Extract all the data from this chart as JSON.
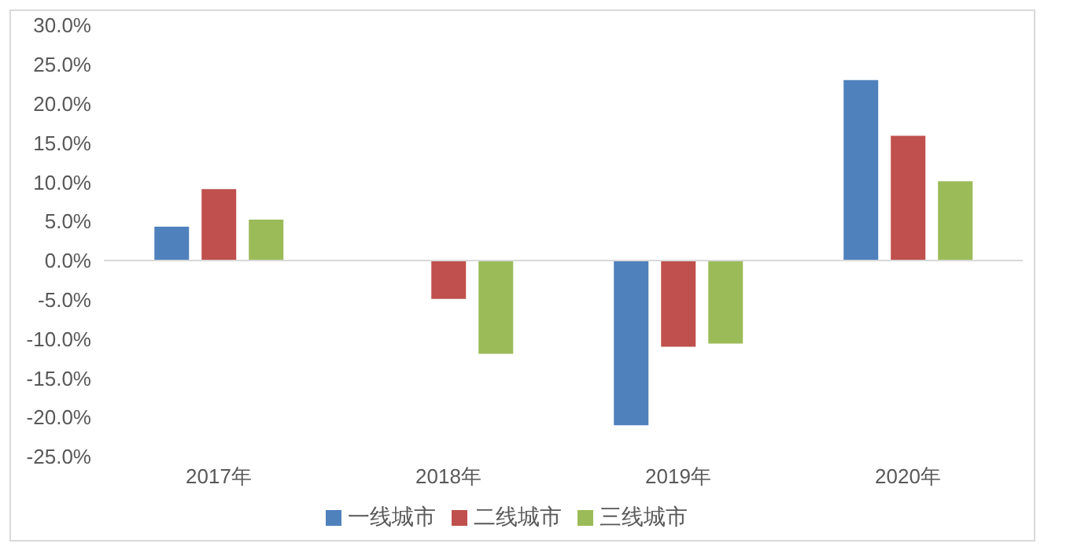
{
  "chart_data": {
    "type": "bar",
    "categories": [
      "2017年",
      "2018年",
      "2019年",
      "2020年"
    ],
    "series": [
      {
        "name": "一线城市",
        "color": "#4f81bd",
        "values": [
          4.3,
          0,
          -21.0,
          23.0
        ]
      },
      {
        "name": "二线城市",
        "color": "#c0504d",
        "values": [
          9.1,
          -4.9,
          -11.0,
          15.9
        ]
      },
      {
        "name": "三线城市",
        "color": "#9bbb59",
        "values": [
          5.2,
          -11.9,
          -10.6,
          10.1
        ]
      }
    ],
    "ylim": [
      -25,
      30
    ],
    "yticks": [
      {
        "value": -25,
        "label": "-25.0%"
      },
      {
        "value": -20,
        "label": "-20.0%"
      },
      {
        "value": -15,
        "label": "-15.0%"
      },
      {
        "value": -10,
        "label": "-10.0%"
      },
      {
        "value": -5,
        "label": "-5.0%"
      },
      {
        "value": 0,
        "label": "0.0%"
      },
      {
        "value": 5,
        "label": "5.0%"
      },
      {
        "value": 10,
        "label": "10.0%"
      },
      {
        "value": 15,
        "label": "15.0%"
      },
      {
        "value": 20,
        "label": "20.0%"
      },
      {
        "value": 25,
        "label": "25.0%"
      },
      {
        "value": 30,
        "label": "30.0%"
      }
    ],
    "grid": false,
    "legend": "bottom",
    "ref_lines": [
      {
        "axis": "y",
        "value": 0,
        "color": "#d9d9d9"
      }
    ]
  }
}
